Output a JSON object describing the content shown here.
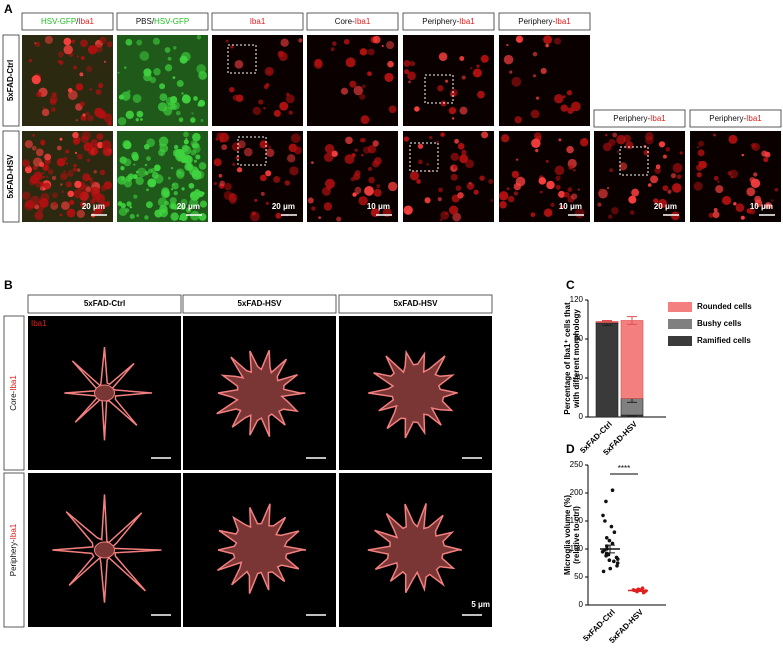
{
  "panel_labels": [
    "A",
    "B",
    "C",
    "D"
  ],
  "panel_a": {
    "headers": [
      [
        {
          "text": "HSV-GFP",
          "color": "#1fbf1f"
        },
        {
          "text": "/",
          "color": "#111111"
        },
        {
          "text": "Iba1",
          "color": "#e0201e"
        }
      ],
      [
        {
          "text": "PBS/",
          "color": "#111111"
        },
        {
          "text": "HSV-GFP",
          "color": "#1fbf1f"
        }
      ],
      [
        {
          "text": "Iba1",
          "color": "#e0201e"
        }
      ],
      [
        {
          "text": "Core-",
          "color": "#111111"
        },
        {
          "text": "Iba1",
          "color": "#e0201e"
        }
      ],
      [
        {
          "text": "Periphery-",
          "color": "#111111"
        },
        {
          "text": "Iba1",
          "color": "#e0201e"
        }
      ],
      [
        {
          "text": "Periphery-",
          "color": "#111111"
        },
        {
          "text": "Iba1",
          "color": "#e0201e"
        }
      ],
      [
        {
          "text": "Periphery-",
          "color": "#111111"
        },
        {
          "text": "Iba1",
          "color": "#e0201e"
        }
      ],
      [
        {
          "text": "Periphery-",
          "color": "#111111"
        },
        {
          "text": "Iba1",
          "color": "#e0201e"
        }
      ]
    ],
    "row_labels": [
      "5xFAD-Ctrl",
      "5xFAD-HSV"
    ],
    "scale_bars": [
      "20 μm",
      "20 μm",
      "20 μm",
      "10 μm",
      "10 μm",
      "20 μm",
      "10 μm"
    ]
  },
  "panel_b": {
    "headers": [
      "5xFAD-Ctrl",
      "5xFAD-HSV",
      "5xFAD-HSV"
    ],
    "row_labels": [
      [
        {
          "text": "Core-",
          "color": "#111111"
        },
        {
          "text": "Iba1",
          "color": "#e0201e"
        }
      ],
      [
        {
          "text": "Periphery-",
          "color": "#111111"
        },
        {
          "text": "Iba1",
          "color": "#e0201e"
        }
      ]
    ],
    "inset_label": "Iba1",
    "scale_bar": "5 μm"
  },
  "chart_data": [
    {
      "type": "stacked_bar",
      "ylabel": [
        "Percentage of Iba1⁺ cells that",
        "with different morphology"
      ],
      "categories": [
        "5xFAD-Ctrl",
        "5xFAD-HSV"
      ],
      "ylim": [
        0,
        120
      ],
      "yticks": [
        0,
        40,
        80,
        120
      ],
      "series": [
        {
          "name": "Ramified cells",
          "color": "#3a3a3a",
          "values": [
            96,
            2
          ],
          "errors": [
            2,
            1
          ]
        },
        {
          "name": "Bushy cells",
          "color": "#808080",
          "values": [
            1,
            17
          ],
          "errors": [
            0,
            4
          ]
        },
        {
          "name": "Rounded cells",
          "color": "#f47f7f",
          "values": [
            1,
            80
          ],
          "errors": [
            1,
            4
          ]
        }
      ]
    },
    {
      "type": "dot",
      "ylabel": [
        "Microglia volume (%)",
        "(relative to ctrl)"
      ],
      "categories": [
        "5xFAD-Ctrl",
        "5xFAD-HSV"
      ],
      "ylim": [
        0,
        250
      ],
      "yticks": [
        0,
        50,
        100,
        150,
        200,
        250
      ],
      "colors": [
        "#111111",
        "#e0201e"
      ],
      "values": [
        [
          205,
          185,
          160,
          150,
          140,
          130,
          120,
          115,
          110,
          105,
          100,
          98,
          95,
          92,
          90,
          88,
          85,
          82,
          80,
          78,
          75,
          70,
          65,
          60
        ],
        [
          30,
          28,
          27,
          27,
          26,
          25,
          25,
          24,
          23,
          22
        ]
      ],
      "means": [
        100,
        26
      ],
      "errors": [
        7,
        2
      ],
      "annotation": "****"
    }
  ]
}
